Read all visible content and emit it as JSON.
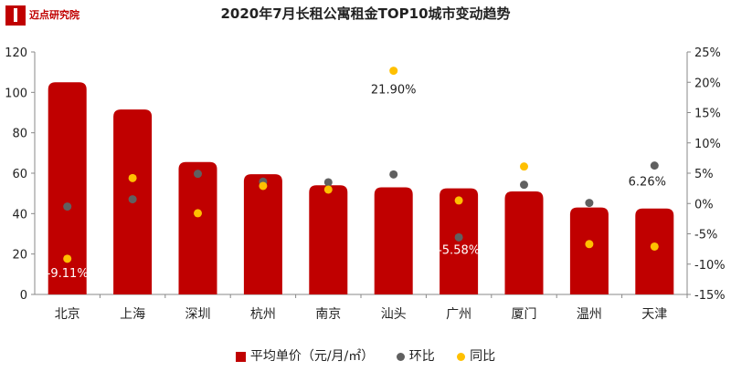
{
  "logo": {
    "text": "迈点研究院"
  },
  "chart_data": {
    "type": "bar",
    "title": "2020年7月长租公寓租金TOP10城市变动趋势",
    "categories": [
      "北京",
      "上海",
      "深圳",
      "杭州",
      "南京",
      "汕头",
      "广州",
      "厦门",
      "温州",
      "天津"
    ],
    "series": [
      {
        "name": "平均单价（元/月/㎡）",
        "type": "bar",
        "axis": "left",
        "color": "#c00000",
        "values": [
          105,
          91.5,
          65.5,
          59.5,
          54,
          53,
          52.5,
          51,
          43,
          42.5
        ]
      },
      {
        "name": "环比",
        "type": "scatter",
        "axis": "right",
        "color": "#606060",
        "values": [
          -0.5,
          0.7,
          4.9,
          3.6,
          3.5,
          4.8,
          -5.58,
          3.1,
          0.1,
          6.26
        ]
      },
      {
        "name": "同比",
        "type": "scatter",
        "axis": "right",
        "color": "#ffc000",
        "values": [
          -9.11,
          4.2,
          -1.6,
          2.9,
          2.3,
          21.9,
          0.5,
          6.1,
          -6.7,
          -7.1
        ]
      }
    ],
    "ylim_left": [
      0,
      120
    ],
    "yticks_left": [
      "0",
      "20",
      "40",
      "60",
      "80",
      "100",
      "120"
    ],
    "ylim_right": [
      -15,
      25
    ],
    "yticks_right": [
      "-15%",
      "-10%",
      "-5%",
      "0%",
      "5%",
      "10%",
      "15%",
      "20%",
      "25%"
    ],
    "data_labels": [
      {
        "text": "-9.11%",
        "series": "同比",
        "index": 0
      },
      {
        "text": "21.90%",
        "series": "同比",
        "index": 5
      },
      {
        "text": "-5.58%",
        "series": "环比",
        "index": 6
      },
      {
        "text": "6.26%",
        "series": "环比",
        "index": 9
      }
    ],
    "grid": false,
    "legend_position": "bottom"
  }
}
